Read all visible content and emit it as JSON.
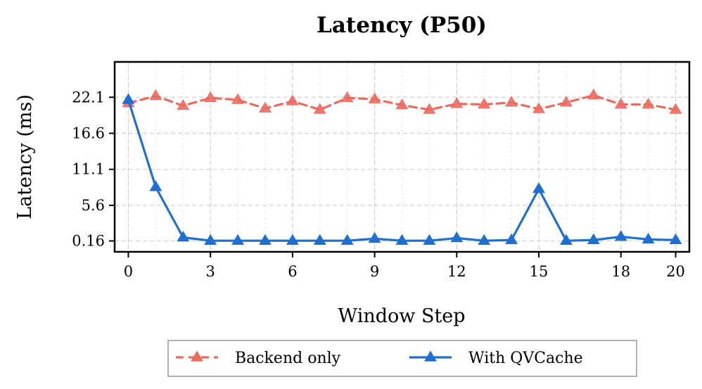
{
  "chart_data": {
    "type": "line",
    "title": "Latency (P50)",
    "xlabel": "Window Step",
    "ylabel": "Latency (ms)",
    "xlim": [
      -0.5,
      20.5
    ],
    "ylim": [
      -1.5,
      27.5
    ],
    "xticks": [
      0,
      3,
      6,
      9,
      12,
      15,
      18,
      20
    ],
    "xtick_labels": [
      "0",
      "3",
      "6",
      "9",
      "12",
      "15",
      "18",
      "20"
    ],
    "yticks": [
      0.16,
      5.6,
      11.1,
      16.6,
      22.1
    ],
    "ytick_labels": [
      "0.16",
      "5.6",
      "11.1",
      "16.6",
      "22.1"
    ],
    "grid": true,
    "legend_position": "bottom-center, below plot",
    "x": [
      0,
      1,
      2,
      3,
      4,
      5,
      6,
      7,
      8,
      9,
      10,
      11,
      12,
      13,
      14,
      15,
      16,
      17,
      18,
      19,
      20
    ],
    "series": [
      {
        "name": "Backend only",
        "color": "#ec6a5e",
        "line_style": "dashed",
        "marker": "triangle",
        "values": [
          21.2,
          22.3,
          20.8,
          22.0,
          21.7,
          20.4,
          21.5,
          20.2,
          22.0,
          21.8,
          20.9,
          20.2,
          21.1,
          21.0,
          21.3,
          20.3,
          21.3,
          22.4,
          21.0,
          21.0,
          20.2
        ]
      },
      {
        "name": "With QVCache",
        "color": "#1f6fd1",
        "line_style": "solid",
        "marker": "triangle",
        "values": [
          21.7,
          8.4,
          0.7,
          0.2,
          0.2,
          0.2,
          0.2,
          0.2,
          0.2,
          0.5,
          0.2,
          0.2,
          0.6,
          0.2,
          0.3,
          8.1,
          0.2,
          0.3,
          0.8,
          0.4,
          0.3
        ]
      }
    ]
  }
}
